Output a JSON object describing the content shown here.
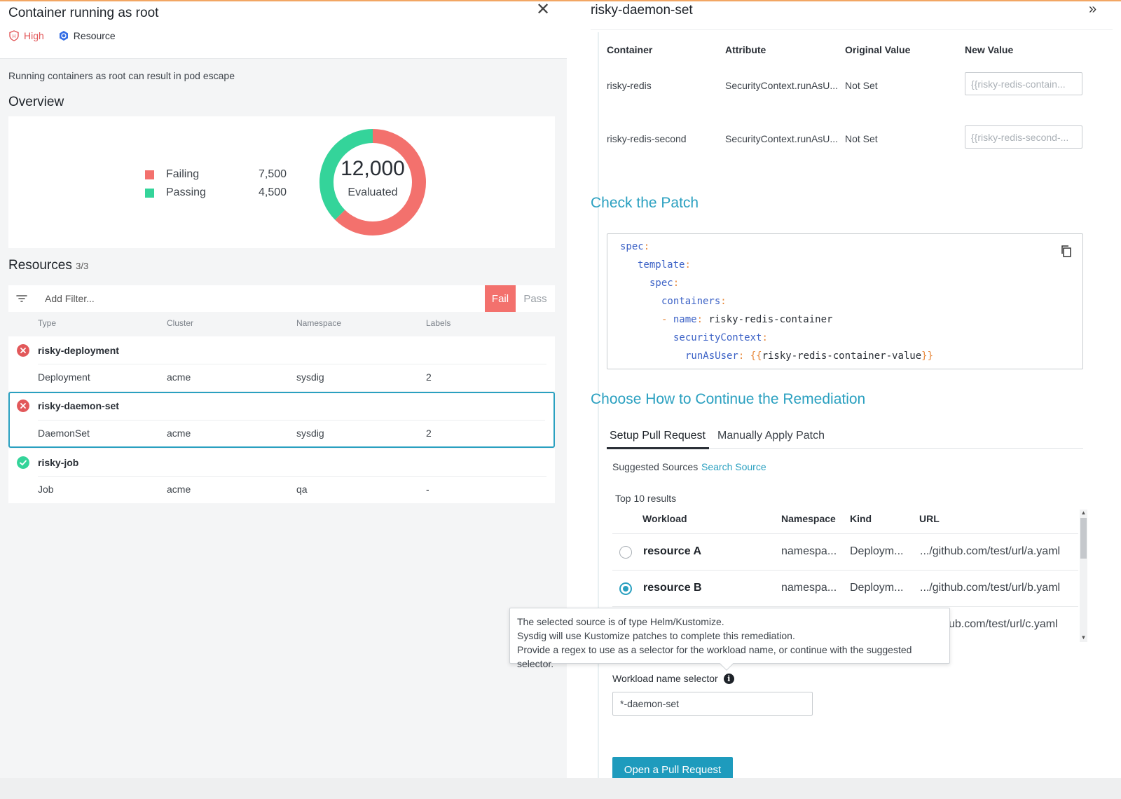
{
  "finding": {
    "title": "Container running as root",
    "severity": "High",
    "scope": "Resource",
    "description": "Running containers as root can result in pod escape"
  },
  "overview": {
    "title": "Overview",
    "legend": [
      {
        "name": "Failing",
        "value": "7,500",
        "color": "#f3716d"
      },
      {
        "name": "Passing",
        "value": "4,500",
        "color": "#34d49a"
      }
    ],
    "total": "12,000",
    "total_label": "Evaluated",
    "failing": 7500,
    "passing": 4500
  },
  "resources": {
    "title": "Resources",
    "count": "3/3",
    "filter_placeholder": "Add Filter...",
    "fail_label": "Fail",
    "pass_label": "Pass",
    "columns": [
      "Type",
      "Cluster",
      "Namespace",
      "Labels"
    ],
    "items": [
      {
        "name": "risky-deployment",
        "status": "fail",
        "type": "Deployment",
        "cluster": "acme",
        "namespace": "sysdig",
        "labels": "2"
      },
      {
        "name": "risky-daemon-set",
        "status": "fail",
        "type": "DaemonSet",
        "cluster": "acme",
        "namespace": "sysdig",
        "labels": "2"
      },
      {
        "name": "risky-job",
        "status": "pass",
        "type": "Job",
        "cluster": "acme",
        "namespace": "qa",
        "labels": "-"
      }
    ]
  },
  "detail": {
    "title": "risky-daemon-set",
    "patch_table": {
      "columns": [
        "Container",
        "Attribute",
        "Original Value",
        "New Value"
      ],
      "rows": [
        {
          "container": "risky-redis",
          "attribute": "SecurityContext.runAsU...",
          "original": "Not Set",
          "new_placeholder": "{{risky-redis-contain..."
        },
        {
          "container": "risky-redis-second",
          "attribute": "SecurityContext.runAsU...",
          "original": "Not Set",
          "new_placeholder": "{{risky-redis-second-..."
        }
      ]
    },
    "check_patch_title": "Check the Patch",
    "code": {
      "l1": "spec",
      "l2": "template",
      "l3": "spec",
      "l4": "containers",
      "l5_key": "name",
      "l5_val": "risky-redis-container",
      "l6": "securityContext",
      "l7_key": "runAsUser",
      "l7_val": "risky-redis-container-value"
    },
    "continue_title": "Choose How to Continue the Remediation",
    "tabs": [
      "Setup Pull Request",
      "Manually Apply Patch"
    ],
    "suggested_label": "Suggested Sources",
    "search_source": "Search Source",
    "top_results": "Top 10 results",
    "workload_columns": [
      "Workload",
      "Namespace",
      "Kind",
      "URL"
    ],
    "workloads": [
      {
        "name": "resource A",
        "namespace": "namespa...",
        "kind": "Deploym...",
        "url": ".../github.com/test/url/a.yaml",
        "selected": false
      },
      {
        "name": "resource B",
        "namespace": "namespa...",
        "kind": "Deploym...",
        "url": ".../github.com/test/url/b.yaml",
        "selected": true
      },
      {
        "name": "",
        "namespace": "",
        "kind": "",
        "url": "ub.com/test/url/c.yaml",
        "selected": false
      }
    ],
    "tooltip": [
      "The selected source is of type Helm/Kustomize.",
      "Sysdig will use Kustomize patches to complete this remediation.",
      "Provide a regex to use as a selector for the workload name, or continue with the suggested selector."
    ],
    "selector_label": "Workload name selector",
    "selector_value": "*-daemon-set",
    "pr_button": "Open a Pull Request"
  },
  "colors": {
    "accent": "#2aa0c0",
    "fail": "#f3716d",
    "pass": "#34d49a",
    "high": "#e2585a"
  }
}
